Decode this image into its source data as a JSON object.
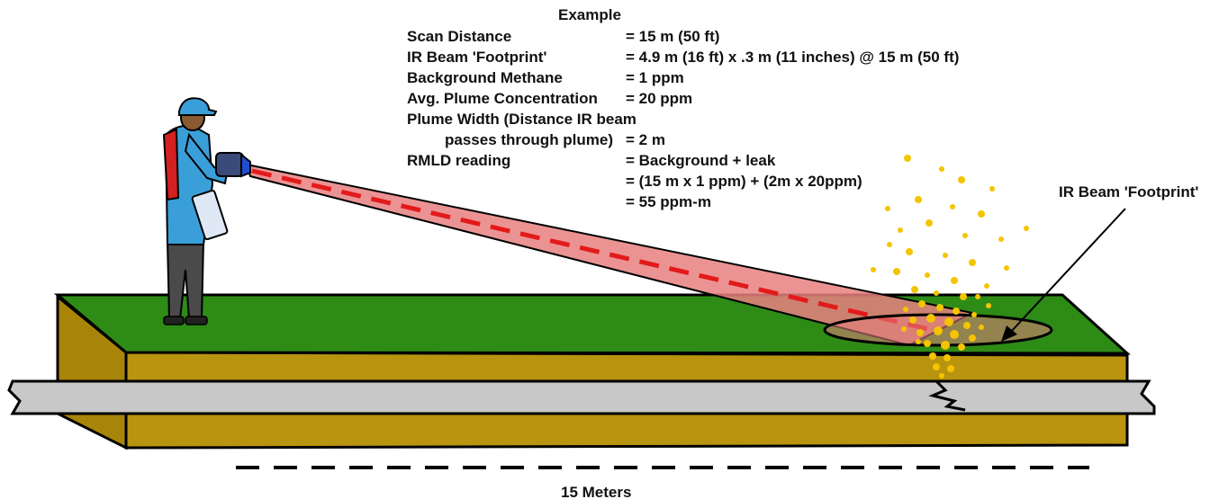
{
  "example": {
    "title": "Example",
    "rows": [
      {
        "label": "Scan Distance",
        "value": "= 15 m (50 ft)"
      },
      {
        "label": "IR Beam 'Footprint'",
        "value": "= 4.9 m (16 ft) x .3 m (11 inches)  @ 15 m (50 ft)"
      },
      {
        "label": "Background Methane",
        "value": "= 1 ppm"
      },
      {
        "label": "Avg. Plume Concentration",
        "value": "= 20 ppm"
      },
      {
        "label": "Plume Width (Distance IR beam",
        "value": ""
      },
      {
        "label": "passes through plume)",
        "value": "= 2 m"
      },
      {
        "label": "RMLD reading",
        "value": "= Background + leak"
      },
      {
        "label": "",
        "value": "= (15 m  x 1 ppm) + (2m x 20ppm)"
      },
      {
        "label": "",
        "value": "= 55 ppm-m"
      }
    ]
  },
  "callout": {
    "footprint": "IR Beam 'Footprint'"
  },
  "distance_label": "15 Meters",
  "colors": {
    "grass": "#2e8b16",
    "soil": "#b8940f",
    "pipe": "#c8c8c8",
    "beam": "#e88080",
    "beam_line": "#e31a1a",
    "plume": "#f5c400",
    "shirt": "#3a9fd8",
    "vest": "#d42020"
  }
}
